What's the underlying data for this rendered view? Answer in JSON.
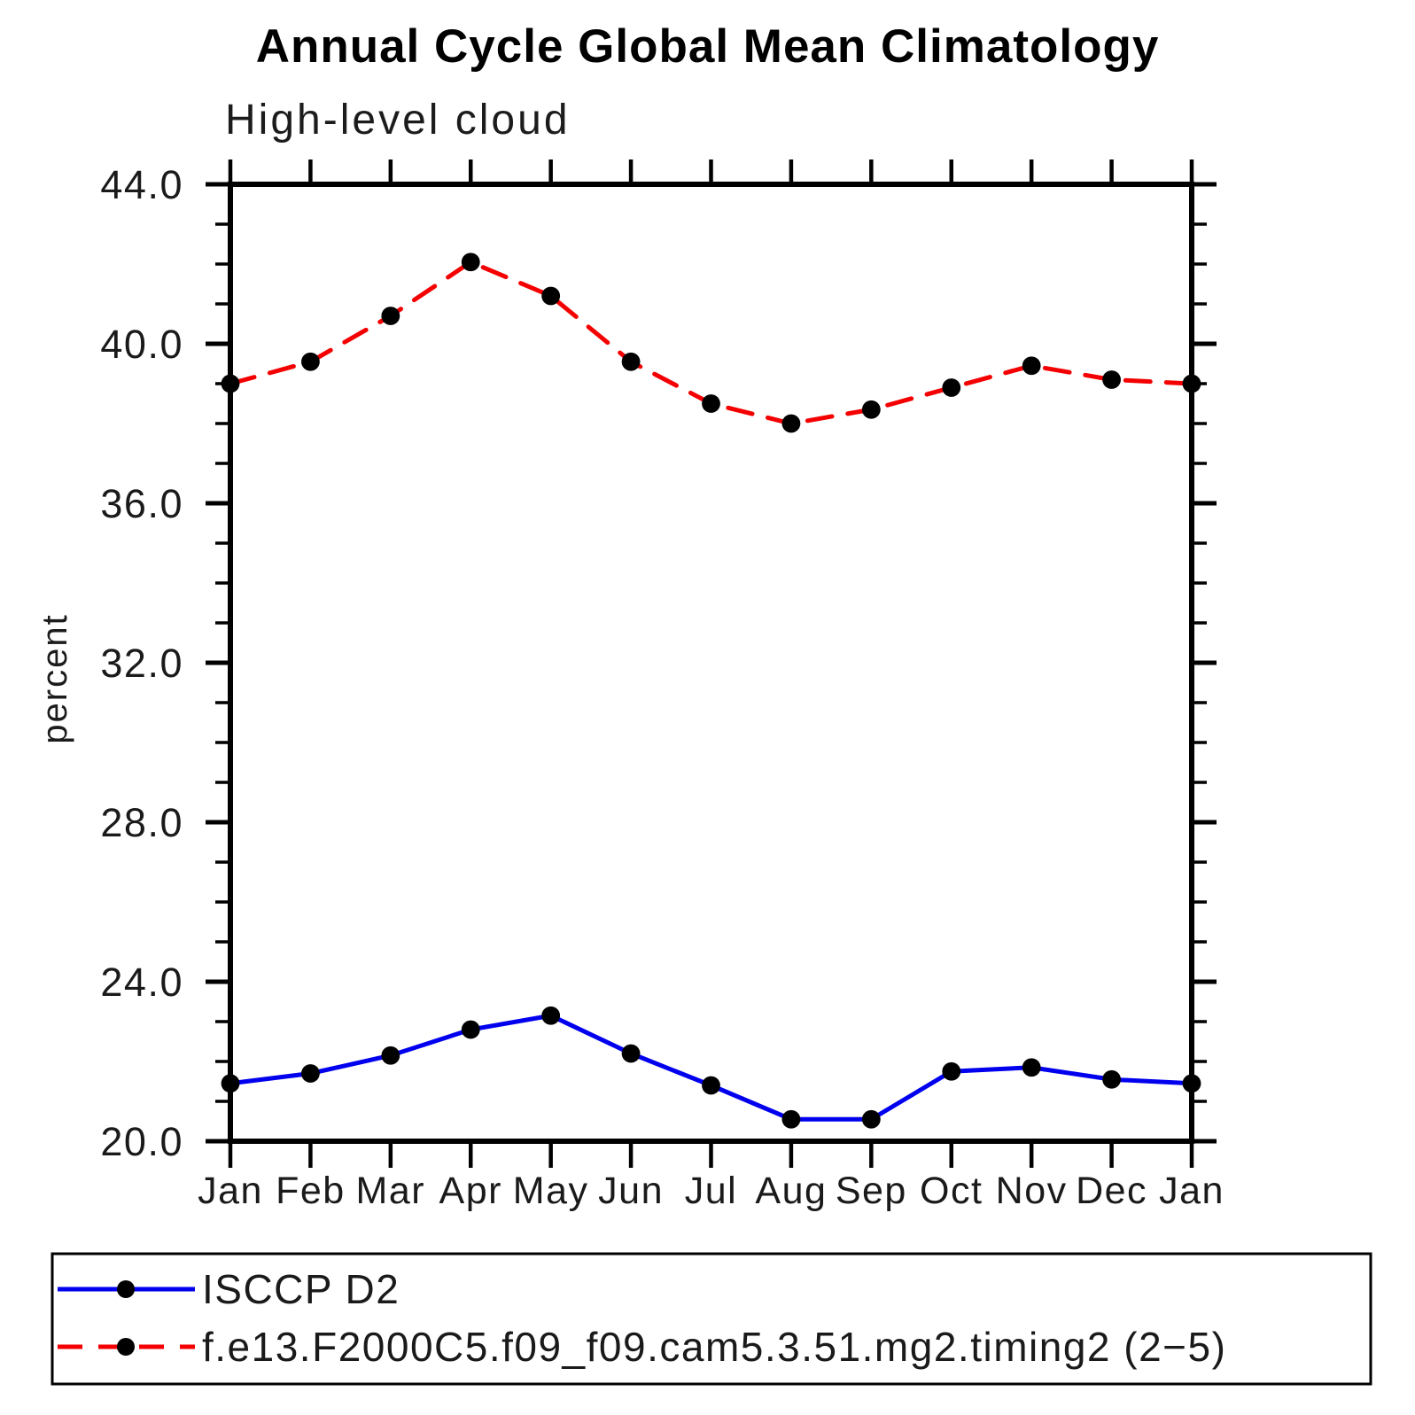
{
  "title": "Annual Cycle Global Mean Climatology",
  "subtitle": "High-level cloud",
  "ylabel": "percent",
  "colors": {
    "obs_line": "#0000ee",
    "model_line": "#f40000",
    "marker": "#000000",
    "axis": "#000000"
  },
  "chart_data": {
    "type": "line",
    "title": "Annual Cycle Global Mean Climatology",
    "subtitle": "High-level cloud",
    "xlabel": "",
    "ylabel": "percent",
    "categories": [
      "Jan",
      "Feb",
      "Mar",
      "Apr",
      "May",
      "Jun",
      "Jul",
      "Aug",
      "Sep",
      "Oct",
      "Nov",
      "Dec",
      "Jan"
    ],
    "ylim": [
      20.0,
      44.0
    ],
    "ytick_major": [
      20.0,
      24.0,
      28.0,
      32.0,
      36.0,
      40.0,
      44.0
    ],
    "ytick_labels": [
      "20.0",
      "24.0",
      "28.0",
      "32.0",
      "36.0",
      "40.0",
      "44.0"
    ],
    "ytick_minor_step": 1.0,
    "grid": false,
    "legend_position": "bottom",
    "series": [
      {
        "name": "ISCCP D2",
        "color": "#0000ee",
        "style": "solid",
        "marker": "circle",
        "marker_color": "#000000",
        "values": [
          21.45,
          21.7,
          22.15,
          22.8,
          23.15,
          22.2,
          21.4,
          20.55,
          20.55,
          21.75,
          21.85,
          21.55,
          21.45
        ]
      },
      {
        "name": "f.e13.F2000C5.f09_f09.cam5.3.51.mg2.timing2 (2−5)",
        "color": "#f40000",
        "style": "dashed",
        "marker": "circle",
        "marker_color": "#000000",
        "values": [
          39.0,
          39.55,
          40.7,
          42.05,
          41.2,
          39.55,
          38.5,
          38.0,
          38.35,
          38.9,
          39.45,
          39.1,
          39.0
        ]
      }
    ]
  }
}
